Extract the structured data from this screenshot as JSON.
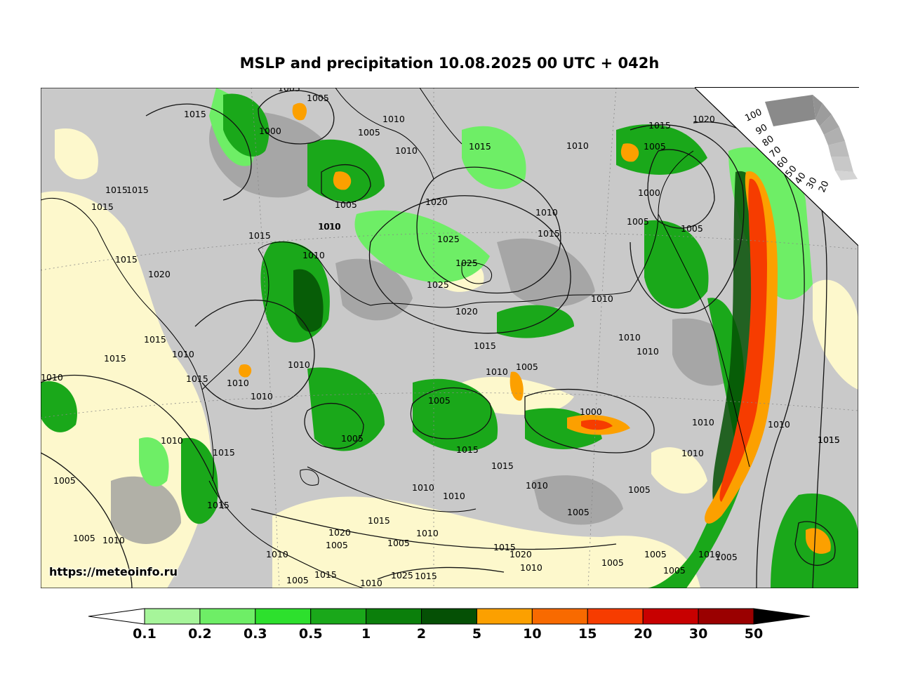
{
  "title": "MSLP and precipitation 10.08.2025 00 UTC + 042h",
  "credit": "https://meteoinfo.ru",
  "precip_legend": {
    "labels": [
      "0.1",
      "0.2",
      "0.3",
      "0.5",
      "1",
      "2",
      "5",
      "10",
      "15",
      "20",
      "30",
      "50"
    ],
    "colors": [
      "#a6f59a",
      "#6eee66",
      "#2de02d",
      "#1aa81a",
      "#0b7f0b",
      "#055005",
      "#fca000",
      "#f86a00",
      "#f63c00",
      "#c80000",
      "#9a0000"
    ]
  },
  "cloud_scale": {
    "labels": [
      "100",
      "90",
      "80",
      "70",
      "60",
      "50",
      "40",
      "30",
      "20"
    ]
  },
  "isobar_labels": [
    "1005",
    "1005",
    "1000",
    "1010",
    "1005",
    "1010",
    "1015",
    "1015",
    "1015",
    "1010",
    "1005",
    "1020",
    "1015",
    "1005",
    "1000",
    "1015",
    "1015",
    "1010",
    "1010",
    "1020",
    "1010",
    "1015",
    "1005",
    "1025",
    "1015",
    "1015",
    "1025",
    "1020",
    "1025",
    "1005",
    "1010",
    "1020",
    "1010",
    "1015",
    "1010",
    "1010",
    "1015",
    "1010",
    "1015",
    "1010",
    "1010",
    "1015",
    "1005",
    "1005",
    "1010",
    "1010",
    "1000",
    "1010",
    "1015",
    "1010",
    "1015",
    "1010",
    "1015",
    "1015",
    "1005",
    "1010",
    "1010",
    "1010",
    "1005",
    "1005",
    "1015",
    "1005",
    "1010",
    "1005",
    "1010",
    "1015",
    "1020",
    "1010",
    "1005",
    "1005",
    "1010",
    "1005",
    "1015",
    "1020",
    "1005",
    "1005",
    "1010",
    "1005",
    "1015",
    "1025",
    "1015",
    "1010",
    "1005",
    "1010",
    "1010",
    "1015"
  ]
}
